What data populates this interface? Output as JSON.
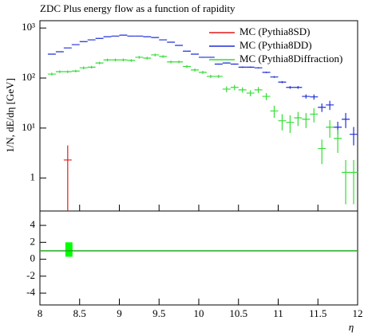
{
  "chart_data": [
    {
      "type": "scatter",
      "title": "ZDC Plus energy flow as a function of rapidity",
      "y_label": "1/N, dE/dη [GeV]",
      "log_y": true,
      "legend": "upper right",
      "xlim": [
        8,
        12
      ],
      "xticks": [
        8,
        8.5,
        9,
        9.5,
        10,
        10.5,
        11,
        11.5,
        12
      ],
      "ylim": [
        0.22,
        1400
      ],
      "yticks": [
        1,
        {
          "value": 10,
          "label": "10¹"
        },
        {
          "value": 100,
          "label": "10²"
        },
        {
          "value": 1000,
          "label": "10³"
        }
      ],
      "series": [
        {
          "name": "MC (Pythia8SD)",
          "color": "#e41a1c",
          "x": [
            8.35
          ],
          "values": [
            2.3
          ],
          "errors": [
            2.2
          ]
        },
        {
          "name": "MC (Pythia8DD)",
          "color": "#1f2fd6",
          "x": [
            8.15,
            8.25,
            8.35,
            8.45,
            8.55,
            8.65,
            8.75,
            8.85,
            8.95,
            9.05,
            9.15,
            9.25,
            9.35,
            9.45,
            9.55,
            9.65,
            9.75,
            9.85,
            9.95,
            10.05,
            10.15,
            10.25,
            10.35,
            10.45,
            10.55,
            10.65,
            10.75,
            10.85,
            10.95,
            11.05,
            11.15,
            11.25,
            11.35,
            11.45,
            11.55,
            11.65,
            11.75,
            11.85,
            11.95
          ],
          "values": [
            300,
            335,
            400,
            465,
            535,
            580,
            620,
            670,
            690,
            720,
            690,
            690,
            670,
            645,
            580,
            520,
            450,
            345,
            300,
            260,
            260,
            190,
            200,
            190,
            165,
            165,
            160,
            130,
            105,
            83,
            65,
            65,
            43,
            42,
            26,
            29,
            10.4,
            15,
            7.5
          ],
          "errors": [
            6,
            7,
            8,
            9,
            10,
            11,
            12,
            13,
            13,
            14,
            13,
            13,
            13,
            12,
            11,
            10,
            9,
            7,
            6,
            6,
            6,
            5,
            5,
            5,
            5,
            5,
            5,
            4,
            4,
            4,
            4,
            4,
            4,
            5,
            5,
            6,
            3,
            5,
            3
          ]
        },
        {
          "name": "MC (Pythia8Diffraction)",
          "color": "#33dd33",
          "x": [
            8.15,
            8.25,
            8.35,
            8.45,
            8.55,
            8.65,
            8.75,
            8.85,
            8.95,
            9.05,
            9.15,
            9.25,
            9.35,
            9.45,
            9.55,
            9.65,
            9.75,
            9.85,
            9.95,
            10.05,
            10.15,
            10.25,
            10.35,
            10.45,
            10.55,
            10.65,
            10.75,
            10.85,
            10.95,
            11.05,
            11.15,
            11.25,
            11.35,
            11.45,
            11.55,
            11.65,
            11.75,
            11.85,
            11.95
          ],
          "values": [
            120,
            134,
            134,
            138,
            160,
            165,
            200,
            230,
            230,
            230,
            225,
            260,
            250,
            290,
            270,
            210,
            210,
            170,
            145,
            130,
            108,
            108,
            60,
            65,
            58,
            50,
            58,
            43,
            22,
            14,
            13,
            16,
            15,
            19,
            3.9,
            10.4,
            6.2,
            1.3,
            1.3
          ],
          "errors": [
            8,
            8,
            8,
            8,
            10,
            10,
            12,
            14,
            14,
            14,
            14,
            16,
            15,
            18,
            16,
            13,
            13,
            11,
            10,
            9,
            8,
            8,
            8,
            8,
            7,
            7,
            8,
            7,
            6,
            5,
            5,
            5,
            5,
            6,
            2,
            4,
            3,
            1.0,
            1.0
          ]
        }
      ]
    },
    {
      "type": "line",
      "x_label": "η",
      "xlim": [
        8,
        12
      ],
      "xticks": [
        8,
        8.5,
        9,
        9.5,
        10,
        10.5,
        11,
        11.5,
        12
      ],
      "ylim": [
        -5.4,
        5.7
      ],
      "yticks": [
        4,
        2,
        0,
        -2,
        -4
      ],
      "x": [
        8,
        12
      ],
      "series": [
        {
          "color": "#1fa81f",
          "values": [
            1,
            1
          ]
        }
      ],
      "band": {
        "x": [
          8.32,
          8.41
        ],
        "low": 0.3,
        "high": 2.0,
        "color": "#00ff00"
      }
    }
  ]
}
